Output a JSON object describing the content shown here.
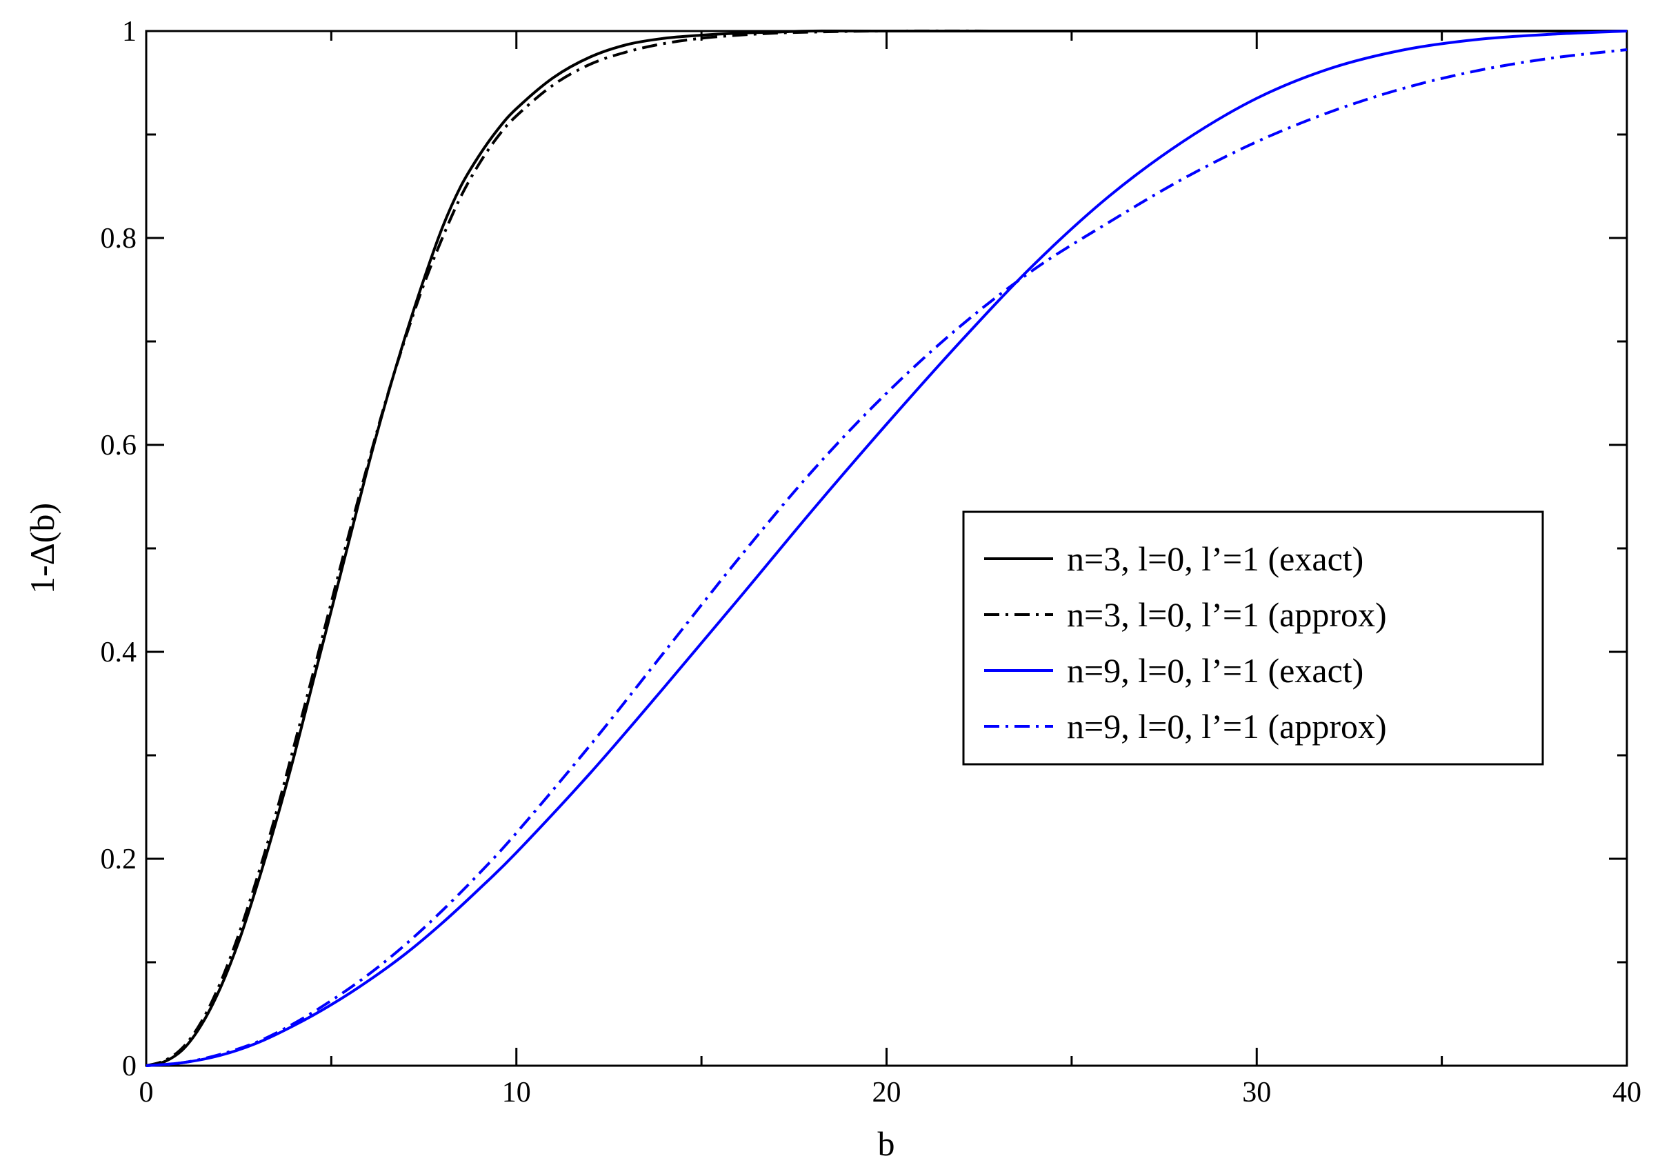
{
  "chart_data": {
    "type": "line",
    "title": "",
    "xlabel": "b",
    "ylabel": "1-Δ(b)",
    "xlim": [
      0,
      40
    ],
    "ylim": [
      0,
      1
    ],
    "x_major_ticks": [
      0,
      10,
      20,
      30,
      40
    ],
    "x_tick_labels": [
      "0",
      "10",
      "20",
      "30",
      "40"
    ],
    "x_minor_ticks": [
      5,
      15,
      25,
      35
    ],
    "y_major_ticks": [
      0,
      0.2,
      0.4,
      0.6,
      0.8,
      1
    ],
    "y_tick_labels": [
      "0",
      "0.2",
      "0.4",
      "0.6",
      "0.8",
      "1"
    ],
    "y_minor_ticks": [
      0.1,
      0.3,
      0.5,
      0.7,
      0.9
    ],
    "grid": false,
    "legend_position": "center-right",
    "series": [
      {
        "name": "n=3, l=0, l’=1 (exact)",
        "color": "#000000",
        "dash": "solid",
        "x": [
          0,
          0.5,
          1,
          1.5,
          2,
          2.5,
          3,
          3.5,
          4,
          4.5,
          5,
          5.5,
          6,
          6.5,
          7,
          7.5,
          8,
          8.5,
          9,
          9.5,
          10,
          11,
          12,
          13,
          14,
          15,
          16,
          17,
          18,
          20,
          25,
          30,
          35,
          40
        ],
        "y": [
          0,
          0.004,
          0.016,
          0.04,
          0.075,
          0.12,
          0.175,
          0.235,
          0.3,
          0.37,
          0.44,
          0.51,
          0.58,
          0.645,
          0.705,
          0.76,
          0.81,
          0.85,
          0.88,
          0.905,
          0.925,
          0.955,
          0.975,
          0.987,
          0.993,
          0.996,
          0.998,
          0.999,
          1,
          1,
          1,
          1,
          1,
          1
        ]
      },
      {
        "name": "n=3, l=0, l’=1 (approx)",
        "color": "#000000",
        "dash": "dashdot",
        "x": [
          0,
          0.5,
          1,
          1.5,
          2,
          2.5,
          3,
          3.5,
          4,
          4.5,
          5,
          5.5,
          6,
          6.5,
          7,
          7.5,
          8,
          8.5,
          9,
          9.5,
          10,
          11,
          12,
          13,
          14,
          15,
          16,
          17,
          18,
          20,
          25,
          30,
          35,
          40
        ],
        "y": [
          0,
          0.005,
          0.018,
          0.043,
          0.08,
          0.127,
          0.182,
          0.243,
          0.31,
          0.378,
          0.448,
          0.517,
          0.583,
          0.646,
          0.703,
          0.755,
          0.8,
          0.84,
          0.872,
          0.898,
          0.918,
          0.948,
          0.968,
          0.98,
          0.988,
          0.993,
          0.996,
          0.998,
          0.999,
          1,
          1,
          1,
          1,
          1
        ]
      },
      {
        "name": "n=9, l=0, l’=1 (exact)",
        "color": "#0000ff",
        "dash": "solid",
        "x": [
          0,
          1,
          2,
          3,
          4,
          5,
          6,
          7,
          8,
          9,
          10,
          12,
          14,
          16,
          18,
          20,
          22,
          24,
          26,
          28,
          30,
          32,
          34,
          36,
          38,
          40
        ],
        "y": [
          0,
          0.003,
          0.01,
          0.022,
          0.039,
          0.059,
          0.082,
          0.108,
          0.138,
          0.171,
          0.206,
          0.283,
          0.366,
          0.451,
          0.537,
          0.62,
          0.7,
          0.775,
          0.84,
          0.893,
          0.935,
          0.964,
          0.982,
          0.992,
          0.997,
          1
        ]
      },
      {
        "name": "n=9, l=0, l’=1 (approx)",
        "color": "#0000ff",
        "dash": "dashdot",
        "x": [
          0,
          1,
          2,
          3,
          4,
          5,
          6,
          7,
          8,
          9,
          10,
          12,
          14,
          16,
          18,
          20,
          22,
          24,
          26,
          28,
          30,
          32,
          34,
          36,
          38,
          40
        ],
        "y": [
          0,
          0.003,
          0.011,
          0.023,
          0.041,
          0.063,
          0.088,
          0.117,
          0.15,
          0.186,
          0.225,
          0.31,
          0.4,
          0.49,
          0.575,
          0.65,
          0.715,
          0.77,
          0.815,
          0.857,
          0.893,
          0.922,
          0.945,
          0.962,
          0.974,
          0.982
        ]
      }
    ]
  }
}
